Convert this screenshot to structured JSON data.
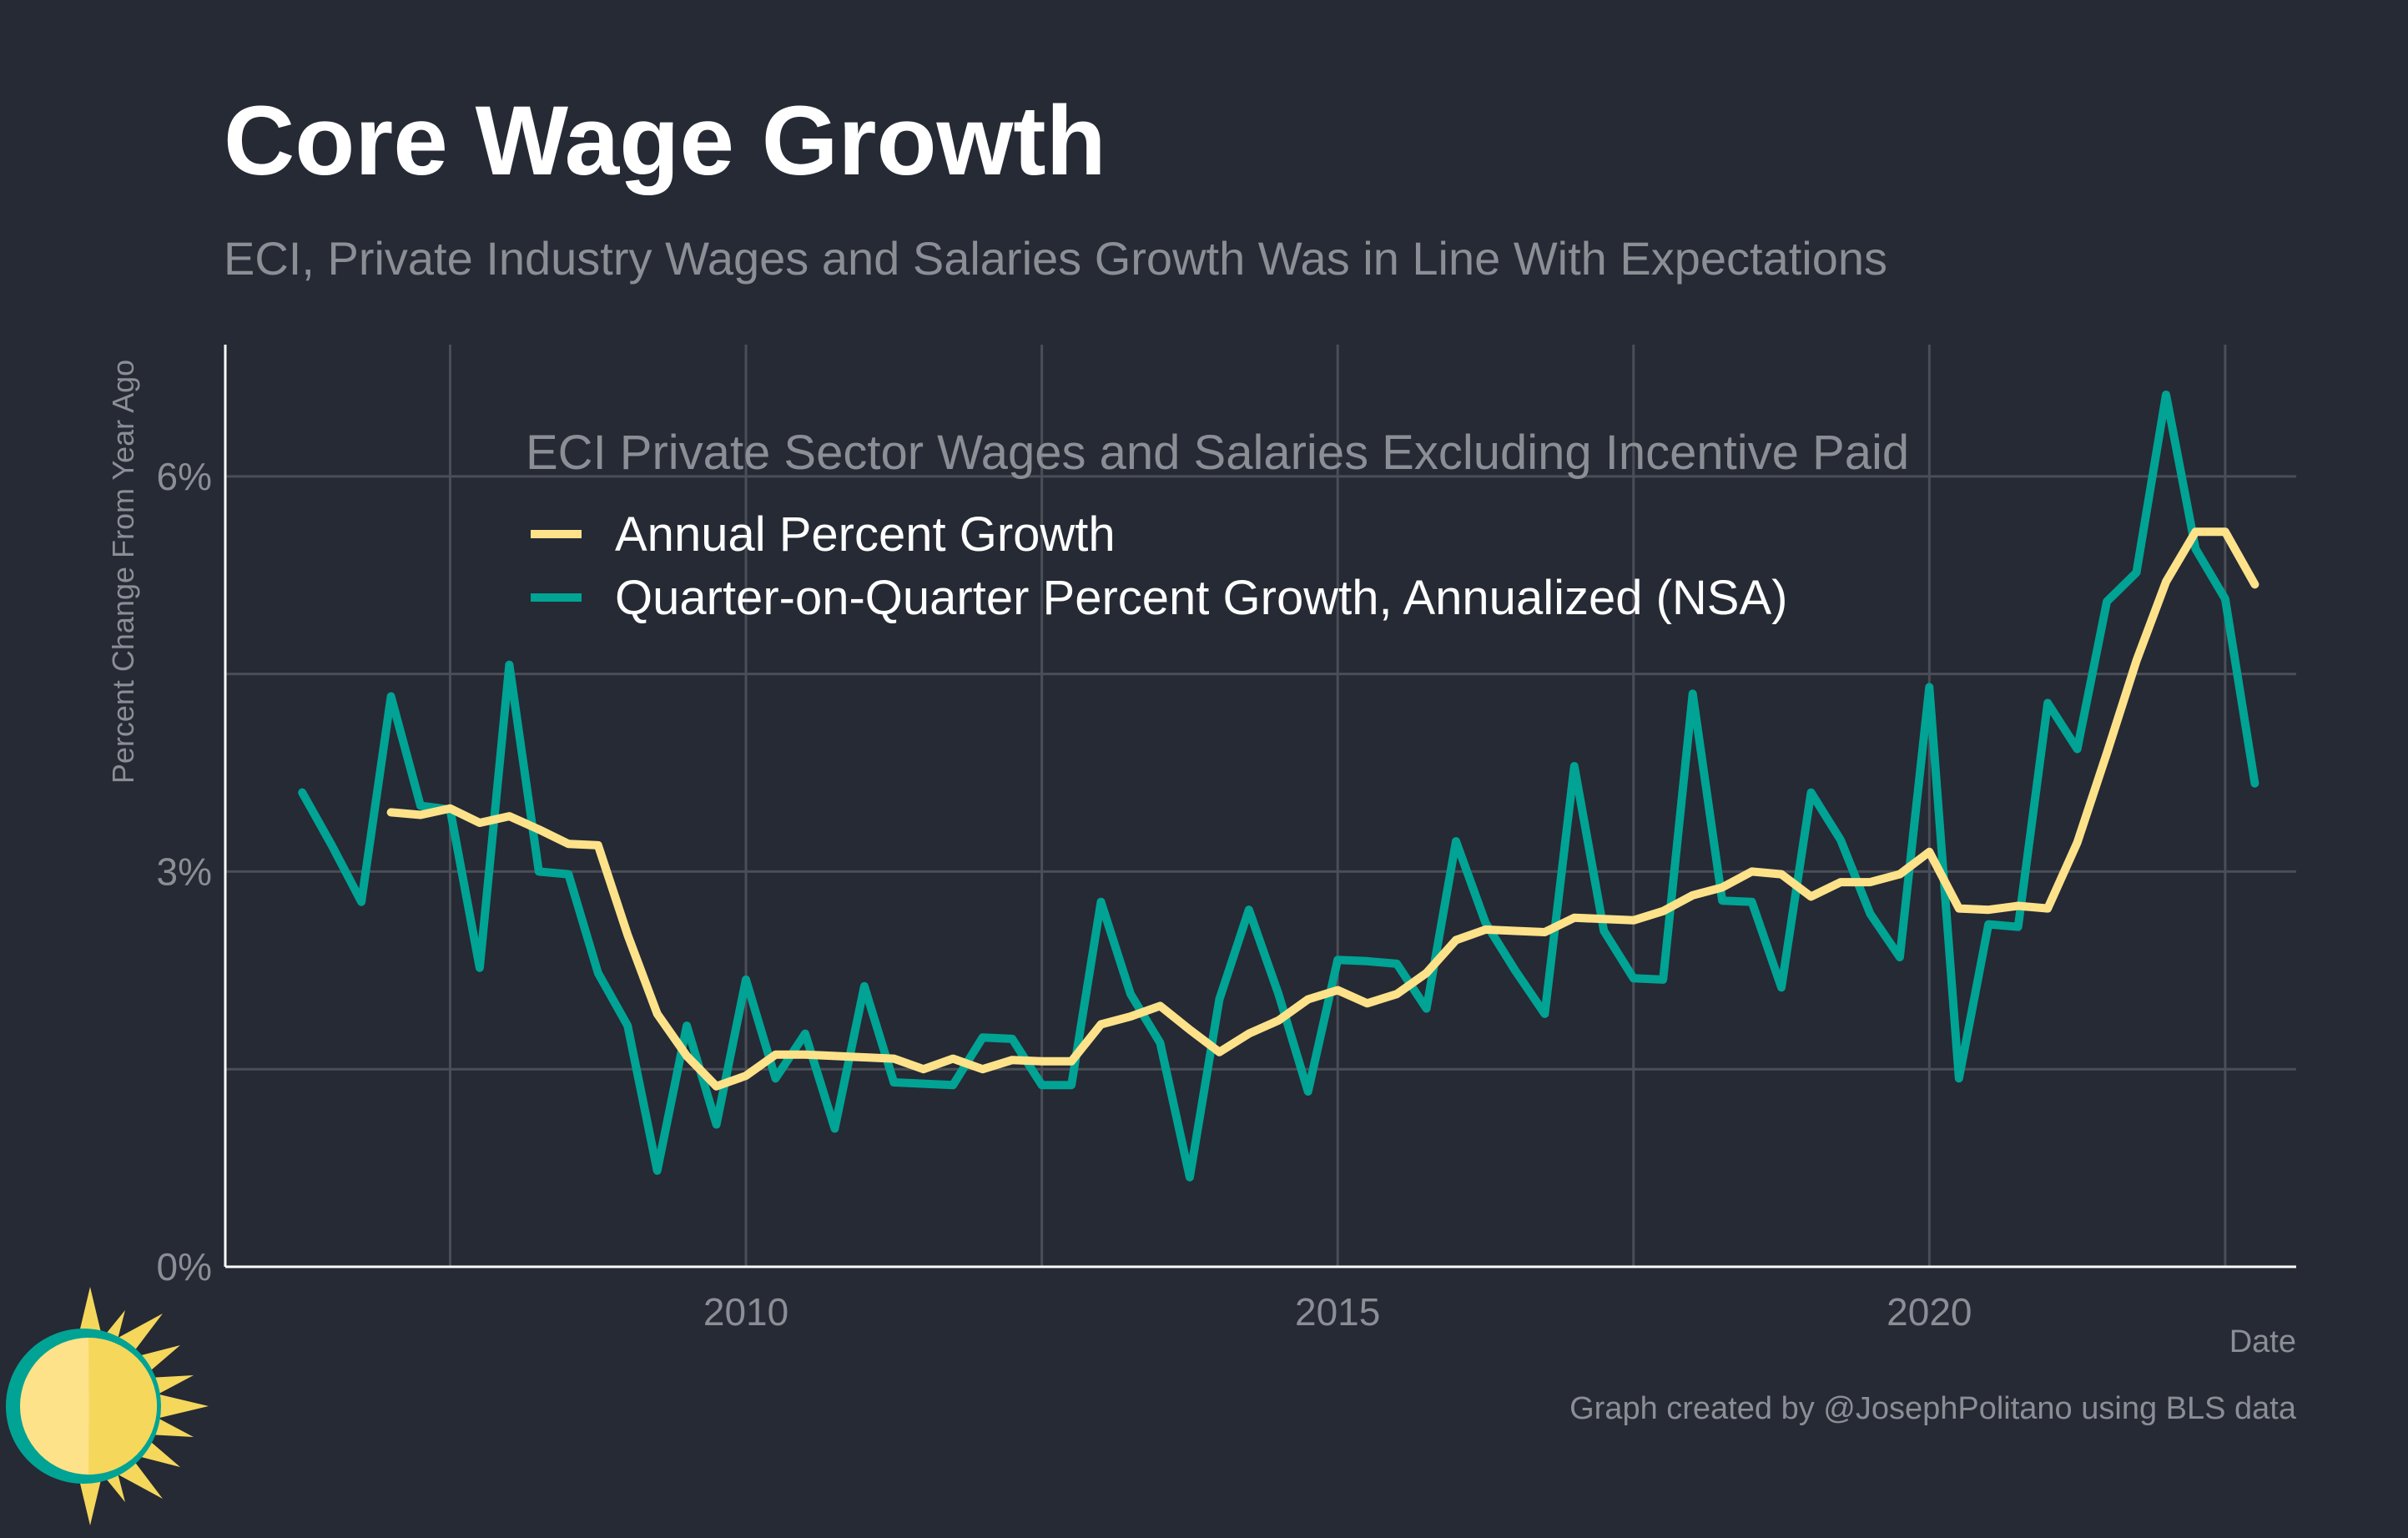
{
  "title": "Core Wage Growth",
  "subtitle": "ECI, Private Industry Wages and Salaries Growth Was in Line With Expectations",
  "caption": "Graph created by @JosephPolitano using BLS data",
  "colors": {
    "background": "#252a34",
    "annual": "#fde28a",
    "qoq": "#00a394",
    "grid": "#4a4e57",
    "text_muted": "#8b8e94"
  },
  "chart_data": {
    "type": "line",
    "xlabel": "Date",
    "ylabel": "Percent Change From Year Ago",
    "xlim": [
      2005.6,
      2023.1
    ],
    "ylim": [
      0,
      7
    ],
    "x_ticks": [
      2010,
      2015,
      2020
    ],
    "x_tick_labels": [
      "2010",
      "2015",
      "2020"
    ],
    "y_ticks": [
      0,
      3,
      6
    ],
    "y_tick_labels": [
      "0%",
      "3%",
      "6%"
    ],
    "grid": true,
    "legend": {
      "title": "ECI Private Sector Wages and Salaries Excluding Incentive Paid",
      "placement": "top-center"
    },
    "series": [
      {
        "name": "Annual Percent Growth",
        "color": "#fde28a",
        "x": [
          2007.0,
          2007.25,
          2007.5,
          2007.75,
          2008.0,
          2008.25,
          2008.5,
          2008.75,
          2009.0,
          2009.25,
          2009.5,
          2009.75,
          2010.0,
          2010.25,
          2010.5,
          2010.75,
          2011.0,
          2011.25,
          2011.5,
          2011.75,
          2012.0,
          2012.25,
          2012.5,
          2012.75,
          2013.0,
          2013.25,
          2013.5,
          2013.75,
          2014.0,
          2014.25,
          2014.5,
          2014.75,
          2015.0,
          2015.25,
          2015.5,
          2015.75,
          2016.0,
          2016.25,
          2016.5,
          2016.75,
          2017.0,
          2017.25,
          2017.5,
          2017.75,
          2018.0,
          2018.25,
          2018.5,
          2018.75,
          2019.0,
          2019.25,
          2019.5,
          2019.75,
          2020.0,
          2020.25,
          2020.5,
          2020.75,
          2021.0,
          2021.25,
          2021.5,
          2021.75,
          2022.0,
          2022.25,
          2022.5,
          2022.75
        ],
        "values": [
          3.45,
          3.43,
          3.48,
          3.37,
          3.42,
          3.32,
          3.21,
          3.2,
          2.52,
          1.92,
          1.6,
          1.37,
          1.45,
          1.61,
          1.61,
          1.6,
          1.59,
          1.58,
          1.5,
          1.58,
          1.5,
          1.57,
          1.56,
          1.56,
          1.84,
          1.9,
          1.98,
          1.8,
          1.63,
          1.77,
          1.87,
          2.03,
          2.1,
          2.0,
          2.07,
          2.23,
          2.48,
          2.56,
          2.55,
          2.54,
          2.65,
          2.64,
          2.63,
          2.7,
          2.82,
          2.88,
          3.0,
          2.98,
          2.81,
          2.92,
          2.92,
          2.98,
          3.15,
          2.72,
          2.71,
          2.74,
          2.72,
          3.22,
          3.9,
          4.6,
          5.2,
          5.58,
          5.58,
          5.18
        ]
      },
      {
        "name": "Quarter-on-Quarter Percent Growth, Annualized (NSA)",
        "color": "#00a394",
        "x": [
          2006.25,
          2006.5,
          2006.75,
          2007.0,
          2007.25,
          2007.5,
          2007.75,
          2008.0,
          2008.25,
          2008.5,
          2008.75,
          2009.0,
          2009.25,
          2009.5,
          2009.75,
          2010.0,
          2010.25,
          2010.5,
          2010.75,
          2011.0,
          2011.25,
          2011.5,
          2011.75,
          2012.0,
          2012.25,
          2012.5,
          2012.75,
          2013.0,
          2013.25,
          2013.5,
          2013.75,
          2014.0,
          2014.25,
          2014.5,
          2014.75,
          2015.0,
          2015.25,
          2015.5,
          2015.75,
          2016.0,
          2016.25,
          2016.5,
          2016.75,
          2017.0,
          2017.25,
          2017.5,
          2017.75,
          2018.0,
          2018.25,
          2018.5,
          2018.75,
          2019.0,
          2019.25,
          2019.5,
          2019.75,
          2020.0,
          2020.25,
          2020.5,
          2020.75,
          2021.0,
          2021.25,
          2021.5,
          2021.75,
          2022.0,
          2022.25,
          2022.5,
          2022.75
        ],
        "values": [
          3.6,
          3.2,
          2.77,
          4.33,
          3.5,
          3.47,
          2.27,
          4.57,
          3.0,
          2.98,
          2.23,
          1.83,
          0.73,
          1.83,
          1.08,
          2.18,
          1.43,
          1.77,
          1.05,
          2.13,
          1.4,
          1.39,
          1.38,
          1.74,
          1.73,
          1.38,
          1.38,
          2.77,
          2.07,
          1.7,
          0.68,
          2.03,
          2.71,
          2.07,
          1.33,
          2.33,
          2.32,
          2.3,
          1.96,
          3.23,
          2.61,
          2.25,
          1.92,
          3.8,
          2.55,
          2.19,
          2.18,
          4.35,
          2.78,
          2.77,
          2.12,
          3.6,
          3.24,
          2.68,
          2.35,
          4.4,
          1.43,
          2.6,
          2.58,
          4.28,
          3.93,
          5.05,
          5.27,
          6.62,
          5.45,
          5.07,
          3.67
        ]
      }
    ]
  }
}
